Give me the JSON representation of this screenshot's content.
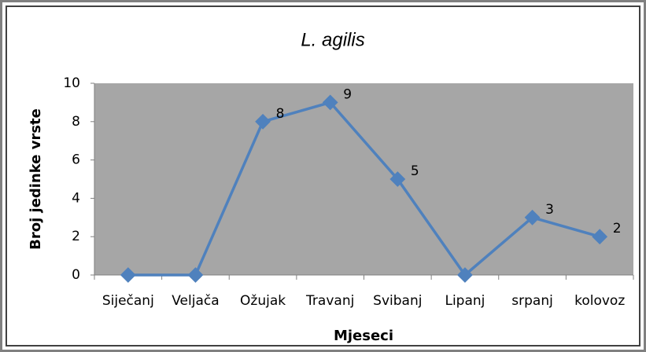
{
  "chart_data": {
    "type": "line",
    "title": "L. agilis",
    "x_label": "Mjeseci",
    "y_label": "Broj jedinke vrste",
    "categories": [
      "Siječanj",
      "Veljača",
      "Ožujak",
      "Travanj",
      "Svibanj",
      "Lipanj",
      "srpanj",
      "kolovoz"
    ],
    "values": [
      0,
      0,
      8,
      9,
      5,
      0,
      3,
      2
    ],
    "value_labels": [
      null,
      null,
      "8",
      "9",
      "5",
      null,
      "3",
      "2"
    ],
    "color": "#4f81bd",
    "ylim": [
      0,
      10
    ],
    "yticks": [
      0,
      2,
      4,
      6,
      8,
      10
    ],
    "grid": false
  }
}
